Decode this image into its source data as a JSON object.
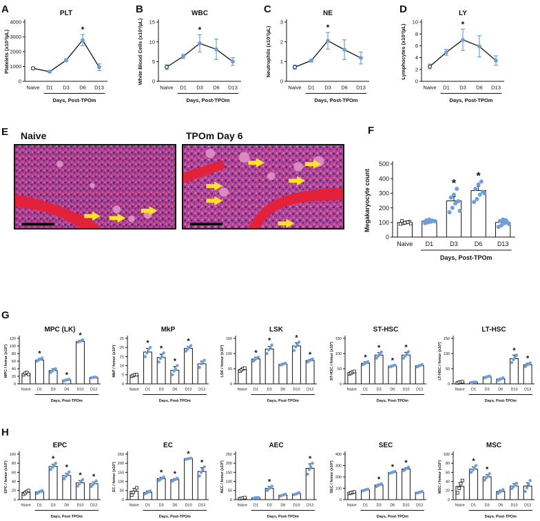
{
  "panels": [
    {
      "letter": "A",
      "title": "PLT",
      "type": "line",
      "ylabel": "Platelets (x10³/µL)",
      "yticks": [
        0,
        1000,
        2000,
        3000,
        4000
      ],
      "ylim": [
        0,
        4000
      ],
      "categories": [
        "Naive",
        "D1",
        "D3",
        "D6",
        "D13"
      ],
      "values": [
        880,
        650,
        1420,
        2780,
        950
      ],
      "errors": [
        80,
        60,
        100,
        380,
        230
      ],
      "star": [
        false,
        false,
        false,
        true,
        false
      ],
      "xlabel": "Days, Post-TPOm"
    },
    {
      "letter": "B",
      "title": "WBC",
      "type": "line",
      "ylabel": "White Blood Cells (x10³/µL)",
      "yticks": [
        0,
        5,
        10,
        15
      ],
      "ylim": [
        0,
        15
      ],
      "categories": [
        "Naive",
        "D1",
        "D3",
        "D6",
        "D13"
      ],
      "values": [
        3.6,
        6.3,
        9.6,
        8.1,
        5.0
      ],
      "errors": [
        0.6,
        0.5,
        2.2,
        2.6,
        1.0
      ],
      "star": [
        false,
        false,
        true,
        false,
        false
      ],
      "xlabel": "Days, Post-TPOm"
    },
    {
      "letter": "C",
      "title": "NE",
      "type": "line",
      "ylabel": "Neutrophils (x10³/µL)",
      "yticks": [
        0,
        1,
        2,
        3
      ],
      "ylim": [
        0,
        3
      ],
      "categories": [
        "Naive",
        "D1",
        "D3",
        "D6",
        "D13"
      ],
      "values": [
        0.72,
        1.05,
        2.05,
        1.6,
        1.18
      ],
      "errors": [
        0.1,
        0.07,
        0.42,
        0.5,
        0.3
      ],
      "star": [
        false,
        false,
        true,
        false,
        false
      ],
      "xlabel": "Days, Post-TPOm"
    },
    {
      "letter": "D",
      "title": "LY",
      "type": "line",
      "ylabel": "Lymphocytes (x10³/µL)",
      "yticks": [
        0,
        2,
        4,
        6,
        8,
        10
      ],
      "ylim": [
        0,
        10
      ],
      "categories": [
        "Naive",
        "D1",
        "D3",
        "D6",
        "D13"
      ],
      "values": [
        2.5,
        4.9,
        7.0,
        5.9,
        3.5
      ],
      "errors": [
        0.4,
        0.5,
        1.8,
        1.8,
        0.8
      ],
      "star": [
        false,
        false,
        true,
        false,
        false
      ],
      "xlabel": "Days, Post-TPOm"
    },
    {
      "letter": "F",
      "title": "",
      "type": "bar",
      "ylabel": "Megakaryocyte count",
      "yticks": [
        0,
        100,
        200,
        300,
        400,
        500
      ],
      "ylim": [
        0,
        500
      ],
      "categories": [
        "Naive",
        "D1",
        "D3",
        "D6",
        "D13"
      ],
      "values": [
        100,
        110,
        248,
        318,
        100
      ],
      "errors": [
        7,
        8,
        28,
        30,
        10
      ],
      "star": [
        false,
        false,
        true,
        true,
        false
      ],
      "xlabel": "Days, Post-TPOm",
      "points": [
        [
          90,
          95,
          100,
          105,
          110,
          98,
          102,
          93
        ],
        [
          95,
          100,
          105,
          110,
          115,
          120,
          112,
          108
        ],
        [
          170,
          200,
          230,
          245,
          270,
          290,
          330,
          180
        ],
        [
          240,
          260,
          290,
          310,
          330,
          360,
          380,
          300
        ],
        [
          70,
          80,
          95,
          100,
          110,
          120,
          115,
          90
        ]
      ]
    },
    {
      "letter": "G",
      "title": "MPC (LK)",
      "type": "bar",
      "ylabel": "MPC / femur (x10³)",
      "yticks": [
        0,
        20,
        40,
        60,
        80,
        100,
        120
      ],
      "ylim": [
        0,
        120
      ],
      "categories": [
        "Naive",
        "D1",
        "D3",
        "D6",
        "D10",
        "D13"
      ],
      "values": [
        27,
        63,
        35,
        10,
        112,
        17
      ],
      "errors": [
        4,
        4,
        5,
        2,
        3,
        1
      ],
      "star": [
        false,
        true,
        false,
        true,
        true,
        false
      ],
      "xlabel": "Days, Post-TPOm",
      "points": [
        [
          24,
          28,
          30,
          25
        ],
        [
          60,
          63,
          65,
          68
        ],
        [
          30,
          34,
          38,
          40
        ],
        [
          8,
          10,
          11,
          12
        ],
        [
          110,
          112,
          113,
          116
        ],
        [
          16,
          17,
          18,
          17
        ]
      ]
    },
    {
      "letter": "",
      "title": "MkP",
      "type": "bar",
      "ylabel": "MkP / femur (x10³)",
      "yticks": [
        0,
        5,
        10,
        15,
        20,
        25
      ],
      "ylim": [
        0,
        25
      ],
      "categories": [
        "Naive",
        "D1",
        "D3",
        "D6",
        "D10",
        "D13"
      ],
      "values": [
        4.7,
        17.5,
        14.5,
        7.5,
        19.5,
        11
      ],
      "errors": [
        0.6,
        2,
        1.8,
        2,
        1,
        1.5
      ],
      "star": [
        false,
        true,
        true,
        true,
        true,
        false
      ],
      "xlabel": "Days, Post-TPOm",
      "points": [
        [
          4.2,
          4.6,
          5.0,
          5.1
        ],
        [
          15,
          17,
          19,
          20
        ],
        [
          12,
          14,
          15,
          17
        ],
        [
          5,
          7,
          8,
          10
        ],
        [
          18,
          19,
          20,
          21
        ],
        [
          9,
          11,
          12,
          13
        ]
      ]
    },
    {
      "letter": "",
      "title": "LSK",
      "type": "bar",
      "ylabel": "LSK / femur (x10³)",
      "yticks": [
        0,
        50,
        100,
        150
      ],
      "ylim": [
        0,
        150
      ],
      "categories": [
        "Naive",
        "D1",
        "D3",
        "D6",
        "D10",
        "D13"
      ],
      "values": [
        47,
        82,
        115,
        65,
        125,
        77
      ],
      "errors": [
        5,
        6,
        9,
        3,
        10,
        4
      ],
      "star": [
        false,
        true,
        true,
        false,
        true,
        true
      ],
      "xlabel": "Days, Post-TPOm",
      "points": [
        [
          42,
          46,
          50,
          52
        ],
        [
          75,
          80,
          85,
          88
        ],
        [
          100,
          112,
          120,
          128
        ],
        [
          62,
          64,
          66,
          68
        ],
        [
          110,
          122,
          130,
          138
        ],
        [
          72,
          76,
          79,
          82
        ]
      ]
    },
    {
      "letter": "",
      "title": "ST-HSC",
      "type": "bar",
      "ylabel": "ST-HSC / femur (x10³)",
      "yticks": [
        0,
        50,
        100,
        150
      ],
      "ylim": [
        0,
        150
      ],
      "categories": [
        "Naive",
        "D1",
        "D3",
        "D6",
        "D10",
        "D13"
      ],
      "values": [
        37,
        68,
        95,
        59,
        95,
        60
      ],
      "errors": [
        4,
        5,
        8,
        3,
        9,
        3
      ],
      "star": [
        false,
        true,
        true,
        true,
        true,
        false
      ],
      "xlabel": "Days, Post-TPOm",
      "points": [
        [
          33,
          36,
          39,
          41
        ],
        [
          63,
          66,
          70,
          73
        ],
        [
          85,
          92,
          100,
          105
        ],
        [
          56,
          58,
          60,
          62
        ],
        [
          85,
          92,
          99,
          106
        ],
        [
          56,
          59,
          61,
          64
        ]
      ]
    },
    {
      "letter": "",
      "title": "LT-HSC",
      "type": "bar",
      "ylabel": "LT-HSC / femur (x10³)",
      "yticks": [
        0,
        50,
        100,
        150
      ],
      "ylim": [
        0,
        150
      ],
      "categories": [
        "Naive",
        "D1",
        "D3",
        "D6",
        "D10",
        "D13"
      ],
      "values": [
        5,
        5,
        23,
        16,
        83,
        63
      ],
      "errors": [
        2,
        1,
        3,
        3,
        12,
        5
      ],
      "star": [
        false,
        false,
        false,
        false,
        true,
        true
      ],
      "xlabel": "Days, Post-TPOm",
      "points": [
        [
          3,
          5,
          6,
          7
        ],
        [
          4,
          5,
          6,
          6
        ],
        [
          20,
          22,
          24,
          26
        ],
        [
          12,
          15,
          17,
          20
        ],
        [
          70,
          80,
          88,
          95
        ],
        [
          57,
          62,
          65,
          69
        ]
      ]
    },
    {
      "letter": "H",
      "title": "EPC",
      "type": "bar",
      "ylabel": "EPC / femur (x10³)",
      "yticks": [
        0,
        20,
        40,
        60,
        80,
        100
      ],
      "ylim": [
        0,
        100
      ],
      "categories": [
        "Naive",
        "D1",
        "D3",
        "D6",
        "D10",
        "D13"
      ],
      "values": [
        16,
        17,
        73,
        53,
        37,
        35
      ],
      "errors": [
        3,
        2,
        5,
        5,
        5,
        4
      ],
      "star": [
        false,
        false,
        true,
        true,
        true,
        true
      ],
      "xlabel": "Days, Post-TPOm",
      "points": [
        [
          12,
          15,
          18,
          20
        ],
        [
          14,
          16,
          18,
          20
        ],
        [
          66,
          71,
          76,
          80
        ],
        [
          46,
          51,
          56,
          61
        ],
        [
          30,
          35,
          40,
          44
        ],
        [
          29,
          33,
          37,
          41
        ]
      ]
    },
    {
      "letter": "",
      "title": "EC",
      "type": "bar",
      "ylabel": "EC / femur (x10³)",
      "yticks": [
        0,
        50,
        100,
        150,
        200,
        250
      ],
      "ylim": [
        0,
        250
      ],
      "categories": [
        "Naive",
        "D1",
        "D3",
        "D6",
        "D10",
        "D13"
      ],
      "values": [
        46,
        40,
        115,
        110,
        225,
        155
      ],
      "errors": [
        15,
        8,
        8,
        6,
        3,
        20
      ],
      "star": [
        false,
        false,
        true,
        true,
        true,
        true
      ],
      "xlabel": "Days, Post-TPOm",
      "points": [
        [
          25,
          40,
          55,
          65
        ],
        [
          32,
          38,
          42,
          48
        ],
        [
          105,
          112,
          118,
          125
        ],
        [
          102,
          108,
          112,
          118
        ],
        [
          222,
          224,
          226,
          228
        ],
        [
          130,
          150,
          165,
          180
        ]
      ]
    },
    {
      "letter": "",
      "title": "AEC",
      "type": "bar",
      "ylabel": "AEC / femur (x10³)",
      "yticks": [
        0,
        50,
        100,
        150,
        200,
        250
      ],
      "ylim": [
        0,
        250
      ],
      "categories": [
        "Naive",
        "D1",
        "D3",
        "D6",
        "D10",
        "D13"
      ],
      "values": [
        8,
        10,
        62,
        25,
        32,
        172
      ],
      "errors": [
        2,
        2,
        10,
        3,
        4,
        25
      ],
      "star": [
        false,
        false,
        true,
        false,
        false,
        true
      ],
      "xlabel": "Days, Post-TPOm",
      "points": [
        [
          5,
          7,
          9,
          11
        ],
        [
          8,
          10,
          11,
          12
        ],
        [
          50,
          58,
          66,
          74
        ],
        [
          20,
          24,
          27,
          30
        ],
        [
          27,
          31,
          34,
          38
        ],
        [
          140,
          165,
          180,
          200
        ]
      ]
    },
    {
      "letter": "",
      "title": "SEC",
      "type": "bar",
      "ylabel": "SEC / femur (x10³)",
      "yticks": [
        0,
        100,
        200,
        300,
        400
      ],
      "ylim": [
        0,
        400
      ],
      "categories": [
        "Naive",
        "D1",
        "D3",
        "D6",
        "D10",
        "D13"
      ],
      "values": [
        62,
        85,
        128,
        240,
        270,
        65
      ],
      "errors": [
        6,
        6,
        10,
        6,
        10,
        5
      ],
      "star": [
        false,
        false,
        true,
        true,
        true,
        false
      ],
      "xlabel": "Days, Post-TPOm",
      "points": [
        [
          55,
          60,
          64,
          68
        ],
        [
          78,
          84,
          88,
          92
        ],
        [
          115,
          125,
          132,
          140
        ],
        [
          232,
          238,
          242,
          248
        ],
        [
          255,
          265,
          275,
          285
        ],
        [
          58,
          63,
          67,
          72
        ]
      ]
    },
    {
      "letter": "",
      "title": "MSC",
      "type": "bar",
      "ylabel": "MSC / femur (x10³)",
      "yticks": [
        0,
        20,
        40,
        60,
        80,
        100
      ],
      "ylim": [
        0,
        100
      ],
      "categories": [
        "Naive",
        "D1",
        "D3",
        "D6",
        "D10",
        "D13"
      ],
      "values": [
        29,
        67,
        50,
        18,
        30,
        30
      ],
      "errors": [
        8,
        5,
        5,
        3,
        5,
        7
      ],
      "star": [
        false,
        true,
        true,
        false,
        false,
        false
      ],
      "xlabel": "Days, Post-TPOm",
      "points": [
        [
          15,
          25,
          35,
          42
        ],
        [
          60,
          65,
          70,
          75
        ],
        [
          43,
          48,
          53,
          57
        ],
        [
          14,
          17,
          19,
          22
        ],
        [
          24,
          28,
          32,
          36
        ],
        [
          18,
          26,
          34,
          42
        ]
      ]
    }
  ],
  "micrographs": {
    "letter": "E",
    "left_title": "Naive",
    "right_title": "TPOm Day 6"
  },
  "colors": {
    "accent": "#6f9fd8",
    "line": "#111111",
    "arrow": "#ffe02a",
    "tissue": "#b83f87",
    "bone": "#e0192f"
  }
}
